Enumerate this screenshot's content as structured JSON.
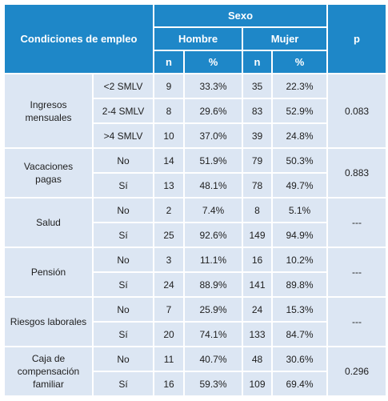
{
  "header": {
    "condiciones": "Condiciones de empleo",
    "sexo": "Sexo",
    "p": "p",
    "hombre": "Hombre",
    "mujer": "Mujer",
    "n": "n",
    "pct": "%"
  },
  "groups": [
    {
      "label_lines": [
        "Ingresos",
        "mensuales"
      ],
      "p": "0.083",
      "rows": [
        {
          "cat": "<2 SMLV",
          "h_n": "9",
          "h_pct": "33.3%",
          "m_n": "35",
          "m_pct": "22.3%"
        },
        {
          "cat": "2-4 SMLV",
          "h_n": "8",
          "h_pct": "29.6%",
          "m_n": "83",
          "m_pct": "52.9%"
        },
        {
          "cat": ">4 SMLV",
          "h_n": "10",
          "h_pct": "37.0%",
          "m_n": "39",
          "m_pct": "24.8%"
        }
      ]
    },
    {
      "label_lines": [
        "Vacaciones",
        "pagas"
      ],
      "p": "0.883",
      "rows": [
        {
          "cat": "No",
          "h_n": "14",
          "h_pct": "51.9%",
          "m_n": "79",
          "m_pct": "50.3%"
        },
        {
          "cat": "Sí",
          "h_n": "13",
          "h_pct": "48.1%",
          "m_n": "78",
          "m_pct": "49.7%"
        }
      ]
    },
    {
      "label_lines": [
        "Salud"
      ],
      "p": "---",
      "rows": [
        {
          "cat": "No",
          "h_n": "2",
          "h_pct": "7.4%",
          "m_n": "8",
          "m_pct": "5.1%"
        },
        {
          "cat": "Sí",
          "h_n": "25",
          "h_pct": "92.6%",
          "m_n": "149",
          "m_pct": "94.9%"
        }
      ]
    },
    {
      "label_lines": [
        "Pensión"
      ],
      "p": "---",
      "rows": [
        {
          "cat": "No",
          "h_n": "3",
          "h_pct": "11.1%",
          "m_n": "16",
          "m_pct": "10.2%"
        },
        {
          "cat": "Sí",
          "h_n": "24",
          "h_pct": "88.9%",
          "m_n": "141",
          "m_pct": "89.8%"
        }
      ]
    },
    {
      "label_lines": [
        "Riesgos laborales"
      ],
      "p": "---",
      "rows": [
        {
          "cat": "No",
          "h_n": "7",
          "h_pct": "25.9%",
          "m_n": "24",
          "m_pct": "15.3%"
        },
        {
          "cat": "Sí",
          "h_n": "20",
          "h_pct": "74.1%",
          "m_n": "133",
          "m_pct": "84.7%"
        }
      ]
    },
    {
      "label_lines": [
        "Caja de",
        "compensación",
        "familiar"
      ],
      "p": "0.296",
      "rows": [
        {
          "cat": "No",
          "h_n": "11",
          "h_pct": "40.7%",
          "m_n": "48",
          "m_pct": "30.6%"
        },
        {
          "cat": "Sí",
          "h_n": "16",
          "h_pct": "59.3%",
          "m_n": "109",
          "m_pct": "69.4%"
        }
      ]
    }
  ]
}
